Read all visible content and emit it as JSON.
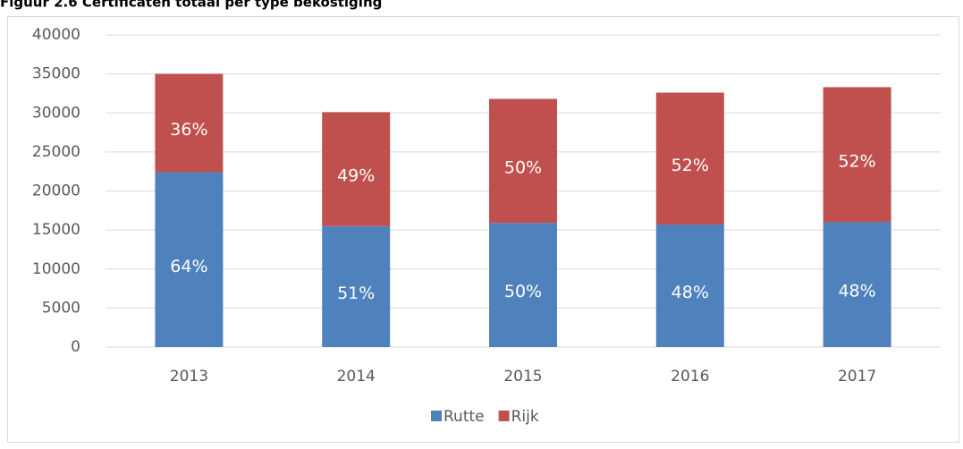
{
  "chart_data": {
    "type": "stacked_bar",
    "title": "Figuur 2.6 Certificaten totaal per type bekostiging",
    "categories": [
      "2013",
      "2014",
      "2015",
      "2016",
      "2017"
    ],
    "series": [
      {
        "name": "Rutte",
        "color": "#4f81bd",
        "values": [
          22400,
          15500,
          15900,
          15700,
          16000
        ],
        "data_labels": [
          "64%",
          "51%",
          "50%",
          "48%",
          "48%"
        ]
      },
      {
        "name": "Rijk",
        "color": "#c0504d",
        "values": [
          12600,
          14600,
          15900,
          16900,
          17300
        ],
        "data_labels": [
          "36%",
          "49%",
          "50%",
          "52%",
          "52%"
        ]
      }
    ],
    "ylim": [
      0,
      40000
    ],
    "yticks": [
      0,
      5000,
      10000,
      15000,
      20000,
      25000,
      30000,
      35000,
      40000
    ],
    "grid": true,
    "legend": "bottom"
  }
}
